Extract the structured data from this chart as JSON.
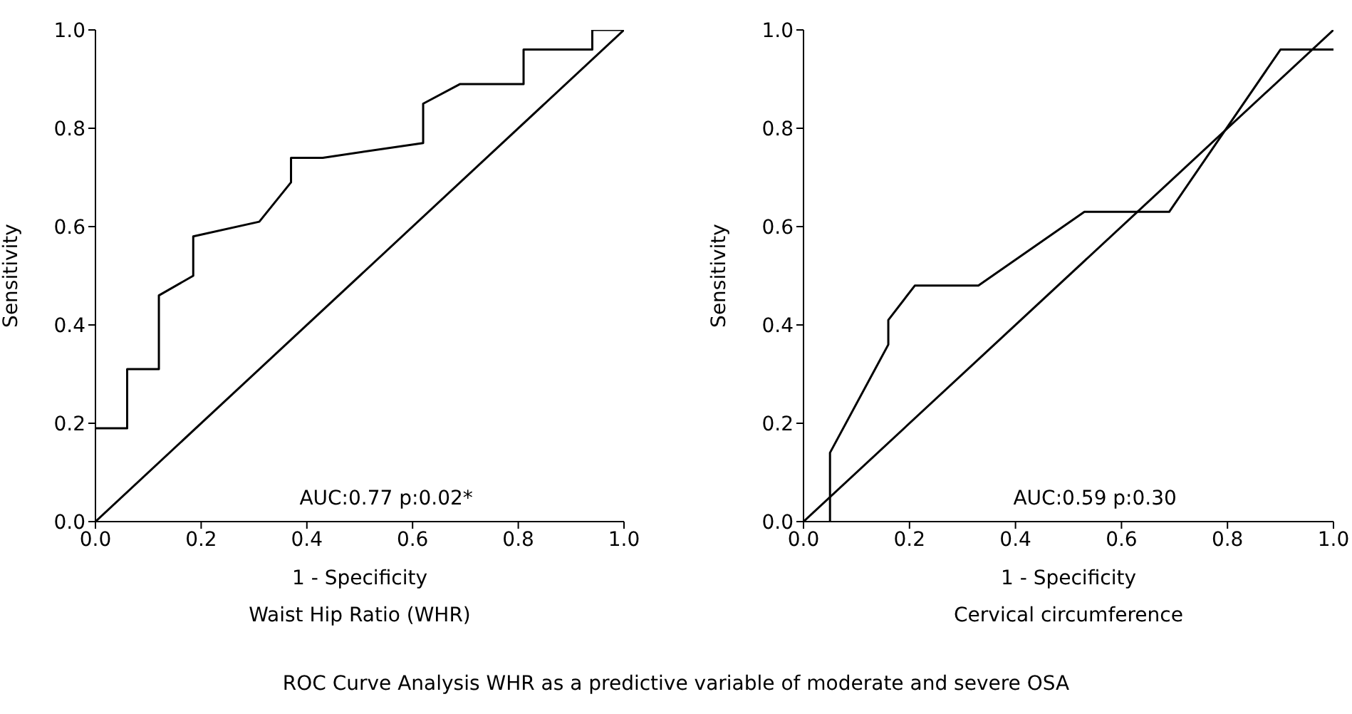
{
  "chart_data": [
    {
      "type": "line",
      "xlabel": "1 - Specificity",
      "subtitle": "Waist Hip Ratio (WHR)",
      "ylabel": "Sensitivity",
      "annotations": [
        "AUC:0.77 p:0.02*"
      ],
      "xlim": [
        0,
        1
      ],
      "ylim": [
        0,
        1
      ],
      "xticks": [
        {
          "value": 0,
          "label": "0.0"
        },
        {
          "value": 0.2,
          "label": "0.2"
        },
        {
          "value": 0.4,
          "label": "0.4"
        },
        {
          "value": 0.6,
          "label": "0.6"
        },
        {
          "value": 0.8,
          "label": "0.8"
        },
        {
          "value": 1,
          "label": "1.0"
        }
      ],
      "yticks": [
        {
          "value": 0,
          "label": "0.0"
        },
        {
          "value": 0.2,
          "label": "0.2"
        },
        {
          "value": 0.4,
          "label": "0.4"
        },
        {
          "value": 0.6,
          "label": "0.6"
        },
        {
          "value": 0.8,
          "label": "0.8"
        },
        {
          "value": 1,
          "label": "1.0"
        }
      ],
      "grid": false,
      "legend": false,
      "marker": "none",
      "line_style": "solid",
      "series": [
        {
          "color": "#000000",
          "x": [
            0,
            0.06,
            0.06,
            0.12,
            0.12,
            0.185,
            0.185,
            0.31,
            0.37,
            0.37,
            0.43,
            0.62,
            0.62,
            0.69,
            0.81,
            0.81,
            0.94,
            0.94,
            1
          ],
          "values": [
            0.19,
            0.19,
            0.31,
            0.31,
            0.46,
            0.5,
            0.58,
            0.61,
            0.69,
            0.74,
            0.74,
            0.77,
            0.85,
            0.89,
            0.89,
            0.96,
            0.96,
            1,
            1
          ]
        },
        {
          "color": "#000000",
          "x": [
            0,
            1
          ],
          "values": [
            0,
            1
          ]
        }
      ]
    },
    {
      "type": "line",
      "xlabel": "1 - Specificity",
      "subtitle": "Cervical circumference",
      "ylabel": "Sensitivity",
      "annotations": [
        "AUC:0.59 p:0.30",
        "ROC Curve Analysis WHR as a predictive variable of moderate and severe OSA"
      ],
      "xlim": [
        0,
        1
      ],
      "ylim": [
        0,
        1
      ],
      "xticks": [
        {
          "value": 0,
          "label": "0.0"
        },
        {
          "value": 0.2,
          "label": "0.2"
        },
        {
          "value": 0.4,
          "label": "0.4"
        },
        {
          "value": 0.6,
          "label": "0.6"
        },
        {
          "value": 0.8,
          "label": "0.8"
        },
        {
          "value": 1,
          "label": "1.0"
        }
      ],
      "yticks": [
        {
          "value": 0,
          "label": "0.0"
        },
        {
          "value": 0.2,
          "label": "0.2"
        },
        {
          "value": 0.4,
          "label": "0.4"
        },
        {
          "value": 0.6,
          "label": "0.6"
        },
        {
          "value": 0.8,
          "label": "0.8"
        },
        {
          "value": 1,
          "label": "1.0"
        }
      ],
      "grid": false,
      "legend": false,
      "marker": "none",
      "line_style": "solid",
      "series": [
        {
          "color": "#000000",
          "x": [
            0.05,
            0.05,
            0.16,
            0.16,
            0.21,
            0.33,
            0.53,
            0.69,
            0.9,
            1
          ],
          "values": [
            0,
            0.14,
            0.36,
            0.41,
            0.48,
            0.48,
            0.63,
            0.63,
            0.96,
            0.96
          ]
        },
        {
          "color": "#000000",
          "x": [
            0,
            1
          ],
          "values": [
            0,
            1
          ]
        }
      ]
    }
  ]
}
